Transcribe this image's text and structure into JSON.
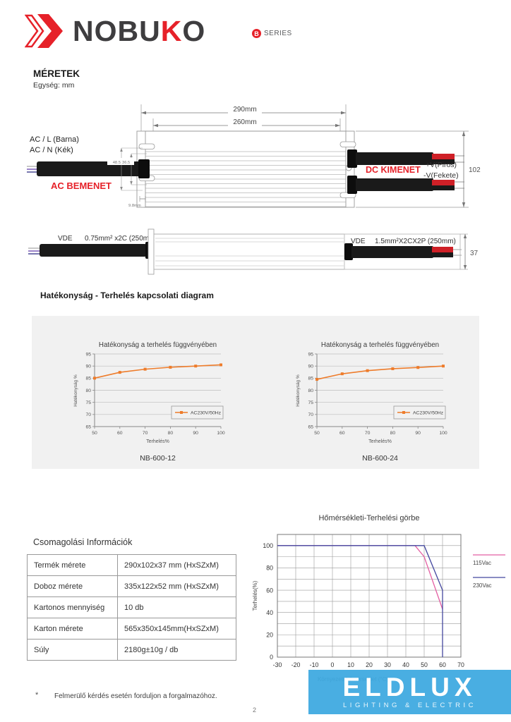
{
  "brand": {
    "name_part1": "NOBU",
    "name_red": "K",
    "name_part2": "O",
    "series_badge": "B",
    "series_label": "SERIES"
  },
  "dimensions": {
    "title": "MÉRETEK",
    "unit": "Egység: mm"
  },
  "drawing": {
    "dim_outer": "290mm",
    "dim_inner": "260mm",
    "ac_line1": "AC / L (Barna)",
    "ac_line2": "AC / N (Kék)",
    "ac_label": "AC BEMENET",
    "dim_a": "48.5",
    "dim_b": "36.5",
    "dim_c": "9.8mm",
    "dc_label": "DC KIMENET",
    "dc_plus": "+V(Piros)",
    "dc_minus": "-V(Fekete)",
    "dim_height": "102",
    "left_vde": "VDE",
    "left_spec": "0.75mm² x2C (250mm)",
    "right_vde": "VDE",
    "right_spec": "1.5mm²X2CX2P (250mm)",
    "dim_depth": "37"
  },
  "efficiency_section": {
    "title": "Hatékonyság - Terhelés kapcsolati diagram"
  },
  "packaging": {
    "title": "Csomagolási Információk",
    "rows": [
      {
        "label": "Termék mérete",
        "value": "290x102x37 mm (HxSZxM)"
      },
      {
        "label": "Doboz mérete",
        "value": "335x122x52 mm (HxSZxM)"
      },
      {
        "label": "Kartonos mennyiség",
        "value": "10 db"
      },
      {
        "label": "Karton mérete",
        "value": "565x350x145mm(HxSZxM)"
      },
      {
        "label": "Súly",
        "value": "2180g±10g / db"
      }
    ]
  },
  "footer": {
    "note_mark": "*",
    "note": "Felmerülő kérdés esetén forduljon a forgalmazóhoz.",
    "page_number": "2"
  },
  "eldlux": {
    "name": "ELDLUX",
    "tagline": "LIGHTING & ELECTRIC",
    "brand_color": "#3ba8e0"
  },
  "chart_data": [
    {
      "type": "line",
      "title": "Hatékonyság a terhelés függvényében",
      "model": "NB-600-12",
      "xlabel": "Terhelés%",
      "ylabel": "Hatékonyság %",
      "xlim": [
        50,
        100
      ],
      "ylim": [
        65,
        95
      ],
      "xticks": [
        50,
        60,
        70,
        80,
        90,
        100
      ],
      "yticks": [
        65,
        70,
        75,
        80,
        85,
        90,
        95
      ],
      "grid": "horizontal",
      "legend_position": "inside-bottom-right",
      "series": [
        {
          "name": "AC230V/50Hz",
          "color": "#ee7c2b",
          "x": [
            50,
            60,
            70,
            80,
            90,
            100
          ],
          "y": [
            85,
            87.4,
            88.7,
            89.5,
            90,
            90.5
          ]
        }
      ]
    },
    {
      "type": "line",
      "title": "Hatékonyság a terhelés függvényében",
      "model": "NB-600-24",
      "xlabel": "Terhelés%",
      "ylabel": "Hatékonyság %",
      "xlim": [
        50,
        100
      ],
      "ylim": [
        65,
        95
      ],
      "xticks": [
        50,
        60,
        70,
        80,
        90,
        100
      ],
      "yticks": [
        65,
        70,
        75,
        80,
        85,
        90,
        95
      ],
      "grid": "horizontal",
      "legend_position": "inside-bottom-right",
      "series": [
        {
          "name": "AC230V/50Hz",
          "color": "#ee7c2b",
          "x": [
            50,
            60,
            70,
            80,
            90,
            100
          ],
          "y": [
            84.5,
            86.8,
            88.1,
            88.9,
            89.4,
            90
          ]
        }
      ]
    },
    {
      "type": "line",
      "title": "Hőmérsékleti-Terhelési görbe",
      "xlabel": "Környezeti hőmérséklet (°C)",
      "ylabel": "Terhelés(%)",
      "xlim": [
        -30,
        70
      ],
      "ylim": [
        0,
        100
      ],
      "xticks": [
        -30,
        -20,
        -10,
        0,
        10,
        20,
        30,
        40,
        50,
        60,
        70
      ],
      "yticks": [
        0,
        20,
        40,
        60,
        80,
        100
      ],
      "grid": "both",
      "grid_step": 10,
      "legend_position": "right",
      "series": [
        {
          "name": "115Vac",
          "color": "#e45fa3",
          "points": [
            [
              -30,
              100
            ],
            [
              45,
              100
            ],
            [
              50,
              90
            ],
            [
              60,
              43
            ]
          ]
        },
        {
          "name": "230Vac",
          "color": "#44479f",
          "points": [
            [
              -30,
              100
            ],
            [
              50,
              100
            ],
            [
              60,
              60
            ],
            [
              60,
              0
            ]
          ]
        }
      ]
    }
  ]
}
